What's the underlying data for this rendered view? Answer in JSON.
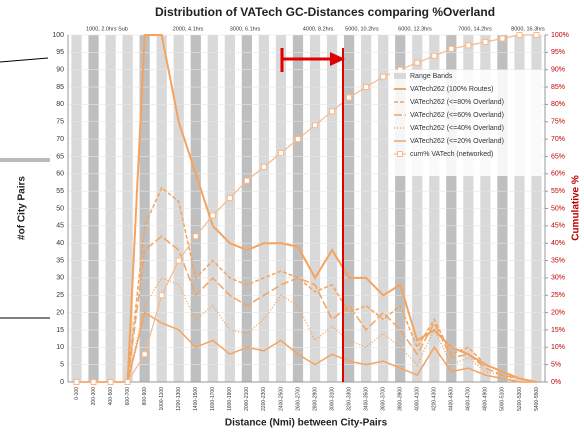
{
  "chart_data": {
    "type": "line",
    "title": "Distribution of VATech GC-Distances comparing %Overland",
    "xlabel": "Distance (Nmi) between City-Pairs",
    "ylabel": "#of City Pairs",
    "y2label": "Cumulative %",
    "annotations": [
      "1000, 2.0hrs Sub",
      "2000, 4.1hrs",
      "3000, 6.1hrs",
      "4000, 8.2hrs",
      "5000, 10.2hrs",
      "6000, 12.3hrs",
      "7000, 14.2hrs",
      "8000, 16.3hrs"
    ],
    "categories": [
      "0-100",
      "200-300",
      "400-500",
      "600-700",
      "800-900",
      "1000-1100",
      "1200-1300",
      "1400-1500",
      "1600-1700",
      "1800-1900",
      "2000-2100",
      "2200-2300",
      "2400-2500",
      "2600-2700",
      "2800-2900",
      "3000-3100",
      "3200-3300",
      "3400-3500",
      "3600-3700",
      "3800-3900",
      "4000-4100",
      "4200-4300",
      "4400-4500",
      "4600-4700",
      "4800-4900",
      "5000-5100",
      "5200-5300",
      "5400-5500"
    ],
    "ylim": [
      0,
      100
    ],
    "yticks": [
      0,
      5,
      10,
      15,
      20,
      25,
      30,
      35,
      40,
      45,
      50,
      55,
      60,
      65,
      70,
      75,
      80,
      85,
      90,
      95,
      100
    ],
    "y2lim": [
      0,
      100
    ],
    "y2ticks": [
      {
        "value": 0,
        "label": "0%"
      },
      {
        "value": 5,
        "label": "5%"
      },
      {
        "value": 10,
        "label": "10%"
      },
      {
        "value": 15,
        "label": "15%"
      },
      {
        "value": 20,
        "label": "20%"
      },
      {
        "value": 25,
        "label": "25%"
      },
      {
        "value": 30,
        "label": "30%"
      },
      {
        "value": 35,
        "label": "35%"
      },
      {
        "value": 40,
        "label": "40%"
      },
      {
        "value": 45,
        "label": "45%"
      },
      {
        "value": 50,
        "label": "50%"
      },
      {
        "value": 55,
        "label": "55%"
      },
      {
        "value": 60,
        "label": "60%"
      },
      {
        "value": 65,
        "label": "65%"
      },
      {
        "value": 70,
        "label": "70%"
      },
      {
        "value": 75,
        "label": "75%"
      },
      {
        "value": 80,
        "label": "80%"
      },
      {
        "value": 85,
        "label": "85%"
      },
      {
        "value": 90,
        "label": "90%"
      },
      {
        "value": 95,
        "label": "95%"
      },
      {
        "value": 100,
        "label": "100%"
      }
    ],
    "grid": true,
    "legend": "upper right",
    "bands": {
      "name": "Range Bands",
      "color": "#d9d9d9",
      "values": [
        100,
        100,
        100,
        100,
        100,
        100,
        100,
        100,
        100,
        100,
        100,
        100,
        100,
        100,
        100,
        100,
        100,
        100,
        100,
        100,
        100,
        100,
        100,
        100,
        100,
        100,
        100,
        100
      ]
    },
    "series": [
      {
        "name": "VATech262 (100% Routes)",
        "color": "#f4a460",
        "dash": "none",
        "width": 2,
        "values": [
          0,
          0,
          0,
          0,
          100,
          100,
          75,
          60,
          45,
          40,
          38,
          40,
          40,
          39,
          30,
          38,
          30,
          30,
          25,
          28,
          12,
          15,
          10,
          8,
          5,
          3,
          1,
          0
        ]
      },
      {
        "name": "VATech262 (<=80% Overland)",
        "color": "#f4a460",
        "dash": "4 2",
        "width": 1.5,
        "values": [
          0,
          0,
          0,
          0,
          45,
          56,
          52,
          30,
          35,
          30,
          28,
          30,
          32,
          30,
          26,
          28,
          20,
          22,
          18,
          22,
          10,
          18,
          8,
          10,
          5,
          3,
          1,
          0
        ]
      },
      {
        "name": "VATech262 (<=60% Overland)",
        "color": "#f4a460",
        "dash": "8 3",
        "width": 1.5,
        "values": [
          0,
          0,
          0,
          0,
          38,
          42,
          38,
          25,
          30,
          25,
          22,
          25,
          28,
          30,
          28,
          18,
          22,
          15,
          20,
          15,
          8,
          17,
          7,
          8,
          4,
          2,
          1,
          0
        ]
      },
      {
        "name": "VATech262 (<=40% Overland)",
        "color": "#f4a460",
        "dash": "1 2",
        "width": 1.5,
        "values": [
          0,
          0,
          0,
          0,
          22,
          30,
          28,
          18,
          22,
          15,
          14,
          18,
          25,
          22,
          12,
          16,
          12,
          10,
          14,
          10,
          5,
          15,
          5,
          7,
          3,
          2,
          0,
          0
        ]
      },
      {
        "name": "VATech262 (<=20% Overland)",
        "color": "#f4a460",
        "dash": "none",
        "width": 1.5,
        "values": [
          0,
          0,
          0,
          0,
          20,
          17,
          15,
          10,
          12,
          8,
          10,
          9,
          12,
          8,
          5,
          8,
          6,
          5,
          6,
          4,
          2,
          10,
          3,
          4,
          2,
          1,
          0,
          0
        ]
      },
      {
        "name": "cum% VATech (networked)",
        "color": "#f7b98b",
        "dash": "none",
        "width": 1.2,
        "marker": "square",
        "axis": "y2",
        "values": [
          0,
          0,
          0,
          0,
          8,
          25,
          35,
          42,
          48,
          53,
          58,
          62,
          66,
          70,
          74,
          78,
          82,
          85,
          88,
          90,
          92,
          94,
          96,
          97,
          98,
          99,
          100,
          100
        ]
      }
    ]
  }
}
